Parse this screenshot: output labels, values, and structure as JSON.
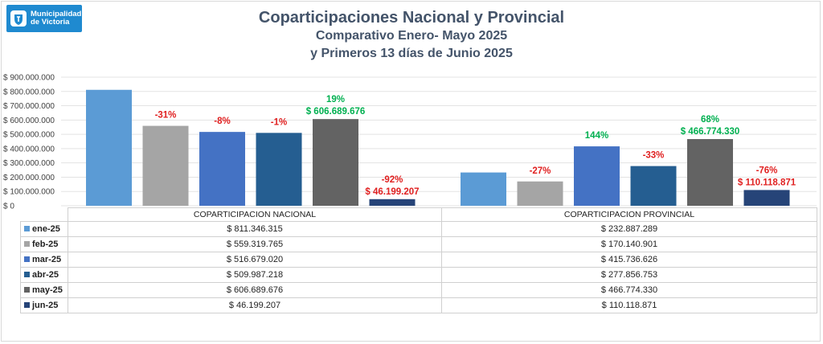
{
  "logo": {
    "line1": "Municipalidad",
    "line2": "de Victoria",
    "bg": "#1f8ad0"
  },
  "title": "Coparticipaciones Nacional y Provincial",
  "subtitle1": "Comparativo  Enero- Mayo 2025",
  "subtitle2": "y Primeros 13 días de Junio 2025",
  "chart_data": {
    "type": "bar",
    "title": "Coparticipaciones Nacional y Provincial",
    "categories": [
      "COPARTICIPACION NACIONAL",
      "COPARTICIPACION PROVINCIAL"
    ],
    "series": [
      {
        "name": "ene-25",
        "color": "#5b9bd5",
        "values": [
          811346315,
          232887289
        ],
        "labels": [
          "",
          ""
        ]
      },
      {
        "name": "feb-25",
        "color": "#a5a5a5",
        "values": [
          559319765,
          170140901
        ],
        "labels": [
          "-31%",
          "-27%"
        ]
      },
      {
        "name": "mar-25",
        "color": "#4472c4",
        "values": [
          516679020,
          415736626
        ],
        "labels": [
          "-8%",
          "144%"
        ]
      },
      {
        "name": "abr-25",
        "color": "#255e91",
        "values": [
          509987218,
          277856753
        ],
        "labels": [
          "-1%",
          "-33%"
        ]
      },
      {
        "name": "may-25",
        "color": "#636363",
        "values": [
          606689676,
          466774330
        ],
        "labels": [
          "19%",
          "68%"
        ],
        "value_labels": [
          "$ 606.689.676",
          "$ 466.774.330"
        ]
      },
      {
        "name": "jun-25",
        "color": "#264478",
        "values": [
          46199207,
          110118871
        ],
        "labels": [
          "-92%",
          "-76%"
        ],
        "value_labels": [
          "$ 46.199.207",
          "$ 110.118.871"
        ]
      }
    ],
    "y_ticks": [
      "$ 0",
      "$ 100.000.000",
      "$ 200.000.000",
      "$ 300.000.000",
      "$ 400.000.000",
      "$ 500.000.000",
      "$ 600.000.000",
      "$ 700.000.000",
      "$ 800.000.000",
      "$ 900.000.000"
    ],
    "ylim": [
      0,
      900000000
    ],
    "grid": true,
    "legend": "data table below chart",
    "positive_color": "#00b050",
    "negative_color": "#e02020"
  },
  "table": {
    "headers": [
      "COPARTICIPACION NACIONAL",
      "COPARTICIPACION PROVINCIAL"
    ],
    "rows": [
      {
        "label": "ene-25",
        "nac": "$ 811.346.315",
        "prov": "$ 232.887.289"
      },
      {
        "label": "feb-25",
        "nac": "$ 559.319.765",
        "prov": "$ 170.140.901"
      },
      {
        "label": "mar-25",
        "nac": "$ 516.679.020",
        "prov": "$ 415.736.626"
      },
      {
        "label": "abr-25",
        "nac": "$ 509.987.218",
        "prov": "$ 277.856.753"
      },
      {
        "label": "may-25",
        "nac": "$ 606.689.676",
        "prov": "$ 466.774.330"
      },
      {
        "label": "jun-25",
        "nac": "$ 46.199.207",
        "prov": "$ 110.118.871"
      }
    ]
  }
}
